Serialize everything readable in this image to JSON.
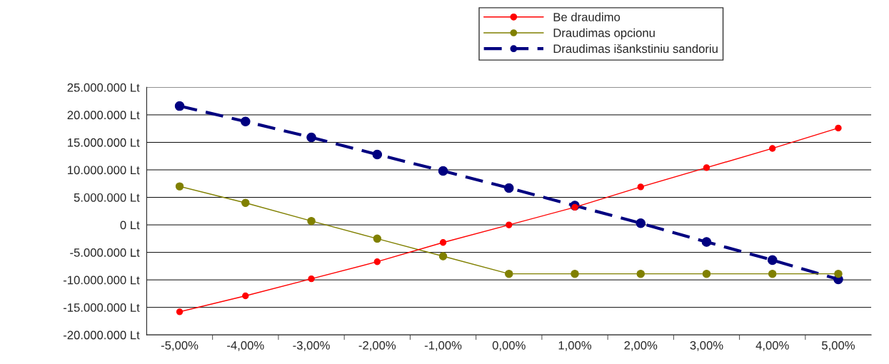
{
  "chart_data": {
    "type": "line",
    "categories": [
      "-5,00%",
      "-4,00%",
      "-3,00%",
      "-2,00%",
      "-1,00%",
      "0,00%",
      "1,00%",
      "2,00%",
      "3,00%",
      "4,00%",
      "5,00%"
    ],
    "series": [
      {
        "name": "Be draudimo",
        "color": "#ff0000",
        "line_style": "solid",
        "values": [
          -15800000,
          -12900000,
          -9800000,
          -6700000,
          -3200000,
          0,
          3200000,
          6900000,
          10400000,
          13900000,
          17600000
        ]
      },
      {
        "name": "Draudimas opcionu",
        "color": "#808000",
        "line_style": "solid",
        "values": [
          7000000,
          4000000,
          700000,
          -2500000,
          -5700000,
          -8900000,
          -8900000,
          -8900000,
          -8900000,
          -8900000,
          -8900000
        ]
      },
      {
        "name": "Draudimas išankstiniu sandoriu",
        "color": "#000080",
        "line_style": "dashed",
        "values": [
          21600000,
          18800000,
          15900000,
          12800000,
          9800000,
          6700000,
          3500000,
          300000,
          -3100000,
          -6400000,
          -9900000
        ]
      }
    ],
    "ylim": [
      -20000000,
      25000000
    ],
    "yticks": [
      {
        "value": -20000000,
        "label": "-20.000.000 Lt"
      },
      {
        "value": -15000000,
        "label": "-15.000.000 Lt"
      },
      {
        "value": -10000000,
        "label": "-10.000.000 Lt"
      },
      {
        "value": -5000000,
        "label": "-5.000.000 Lt"
      },
      {
        "value": 0,
        "label": "0 Lt"
      },
      {
        "value": 5000000,
        "label": "5.000.000 Lt"
      },
      {
        "value": 10000000,
        "label": "10.000.000 Lt"
      },
      {
        "value": 15000000,
        "label": "15.000.000 Lt"
      },
      {
        "value": 20000000,
        "label": "20.000.000 Lt"
      },
      {
        "value": 25000000,
        "label": "25.000.000 Lt"
      }
    ],
    "grid": "y",
    "marker": "circle",
    "legend": "top right"
  }
}
